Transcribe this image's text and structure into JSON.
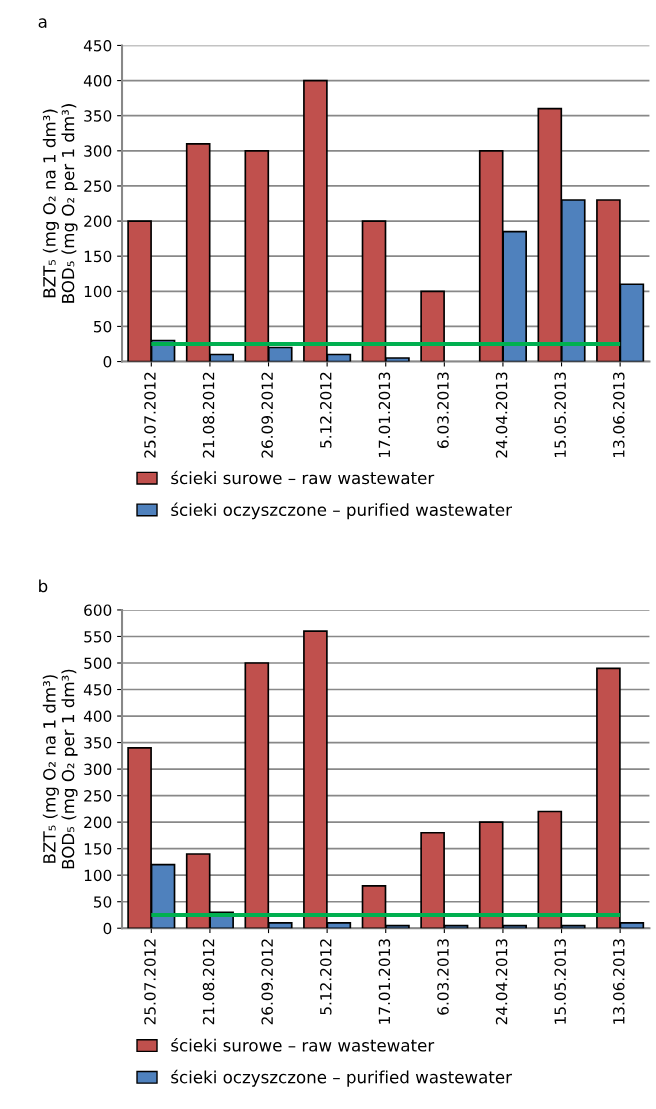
{
  "chart_data": [
    {
      "type": "bar",
      "title": "a",
      "ylabel": "BZT₅ (mg O₂ na 1 dm³)\nBOD₅ (mg O₂ per 1 dm³)",
      "categories": [
        "25.07.2012",
        "21.08.2012",
        "26.09.2012",
        "5.12.2012",
        "17.01.2013",
        "6.03.2013",
        "24.04.2013",
        "15.05.2013",
        "13.06.2013"
      ],
      "series": [
        {
          "name": "ścieki surowe – raw wastewater",
          "color": "#c0504d",
          "values": [
            200,
            310,
            300,
            400,
            200,
            100,
            300,
            360,
            230
          ]
        },
        {
          "name": "ścieki oczyszczone – purified wastewater",
          "color": "#4f81bd",
          "values": [
            30,
            10,
            20,
            10,
            5,
            null,
            185,
            230,
            110
          ]
        }
      ],
      "ylim": [
        0,
        450
      ],
      "yticks": [
        0,
        50,
        100,
        150,
        200,
        250,
        300,
        350,
        400,
        450
      ],
      "grid": "y",
      "legend": "bottom",
      "ref_lines": [
        {
          "axis": "y",
          "value": 25,
          "color": "#00b050"
        }
      ]
    },
    {
      "type": "bar",
      "title": "b",
      "ylabel": "BZT₅ (mg O₂ na 1 dm³)\nBOD₅ (mg O₂ per 1 dm³)",
      "categories": [
        "25.07.2012",
        "21.08.2012",
        "26.09.2012",
        "5.12.2012",
        "17.01.2013",
        "6.03.2013",
        "24.04.2013",
        "15.05.2013",
        "13.06.2013"
      ],
      "series": [
        {
          "name": "ścieki surowe – raw wastewater",
          "color": "#c0504d",
          "values": [
            340,
            140,
            500,
            560,
            80,
            180,
            200,
            220,
            490
          ]
        },
        {
          "name": "ścieki oczyszczone – purified wastewater",
          "color": "#4f81bd",
          "values": [
            120,
            30,
            10,
            10,
            5,
            5,
            5,
            5,
            10
          ]
        }
      ],
      "ylim": [
        0,
        600
      ],
      "yticks": [
        0,
        50,
        100,
        150,
        200,
        250,
        300,
        350,
        400,
        450,
        500,
        550,
        600
      ],
      "grid": "y",
      "legend": "bottom",
      "ref_lines": [
        {
          "axis": "y",
          "value": 25,
          "color": "#00b050"
        }
      ]
    }
  ]
}
